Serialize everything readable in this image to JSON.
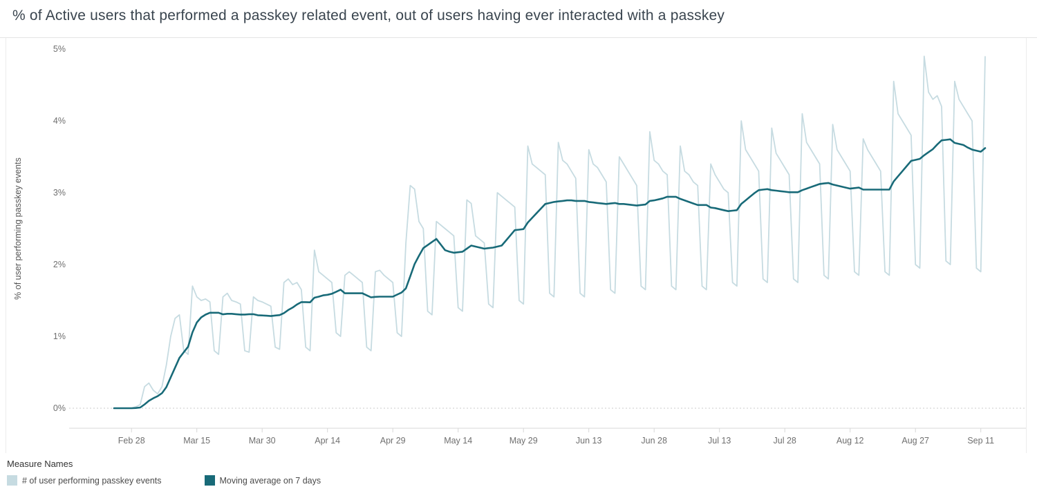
{
  "title": "% of Active users that performed a passkey related event, out of users having ever interacted with a passkey",
  "legend": {
    "title": "Measure Names",
    "items": [
      {
        "label": "# of user performing passkey events",
        "color": "#c6dbe1"
      },
      {
        "label": "Moving average on 7 days",
        "color": "#186a78"
      }
    ]
  },
  "chart_data": {
    "type": "line",
    "title": "% of Active users that performed a passkey related event, out of users having ever interacted with a passkey",
    "xlabel": "",
    "ylabel": "% of user performing passkey events",
    "ylim": [
      0,
      5
    ],
    "y_ticks": [
      "0%",
      "1%",
      "2%",
      "3%",
      "4%",
      "5%"
    ],
    "grid": "dotted zero line only",
    "legend_position": "bottom-left",
    "x_unit": "day",
    "x_start_label": "Feb 24",
    "x_tick_labels": [
      "Feb 28",
      "Mar 15",
      "Mar 30",
      "Apr 14",
      "Apr 29",
      "May 14",
      "May 29",
      "Jun 13",
      "Jun 28",
      "Jul 13",
      "Jul 28",
      "Aug 12",
      "Aug 27",
      "Sep 11"
    ],
    "x_tick_day_index": [
      4,
      19,
      34,
      49,
      64,
      79,
      94,
      109,
      124,
      139,
      154,
      169,
      184,
      199
    ],
    "series": [
      {
        "name": "# of user performing passkey events",
        "color": "#c6dbe1",
        "values": [
          0,
          0,
          0,
          0,
          0,
          0.02,
          0.05,
          0.3,
          0.35,
          0.25,
          0.2,
          0.3,
          0.6,
          1.0,
          1.25,
          1.3,
          0.8,
          0.75,
          1.7,
          1.55,
          1.5,
          1.52,
          1.48,
          0.8,
          0.75,
          1.55,
          1.6,
          1.5,
          1.48,
          1.45,
          0.8,
          0.78,
          1.55,
          1.5,
          1.48,
          1.45,
          1.42,
          0.85,
          0.82,
          1.75,
          1.8,
          1.72,
          1.75,
          1.65,
          0.85,
          0.8,
          2.2,
          1.9,
          1.85,
          1.8,
          1.75,
          1.05,
          1.0,
          1.85,
          1.9,
          1.85,
          1.8,
          1.75,
          0.85,
          0.8,
          1.9,
          1.92,
          1.85,
          1.8,
          1.75,
          1.05,
          1.0,
          2.3,
          3.1,
          3.05,
          2.6,
          2.5,
          1.35,
          1.3,
          2.6,
          2.55,
          2.5,
          2.45,
          2.4,
          1.4,
          1.35,
          2.9,
          2.85,
          2.4,
          2.35,
          2.3,
          1.45,
          1.4,
          3.0,
          2.95,
          2.9,
          2.85,
          2.8,
          1.5,
          1.45,
          3.65,
          3.4,
          3.35,
          3.3,
          3.25,
          1.6,
          1.55,
          3.7,
          3.45,
          3.4,
          3.3,
          3.2,
          1.6,
          1.55,
          3.6,
          3.4,
          3.35,
          3.25,
          3.15,
          1.65,
          1.6,
          3.5,
          3.4,
          3.3,
          3.2,
          3.1,
          1.7,
          1.65,
          3.85,
          3.45,
          3.4,
          3.3,
          3.25,
          1.7,
          1.65,
          3.65,
          3.3,
          3.25,
          3.15,
          3.1,
          1.7,
          1.65,
          3.4,
          3.25,
          3.15,
          3.05,
          3.0,
          1.75,
          1.7,
          4.0,
          3.6,
          3.5,
          3.4,
          3.3,
          1.8,
          1.75,
          3.9,
          3.55,
          3.45,
          3.35,
          3.25,
          1.8,
          1.75,
          4.1,
          3.7,
          3.6,
          3.5,
          3.4,
          1.85,
          1.8,
          3.95,
          3.6,
          3.5,
          3.4,
          3.3,
          1.9,
          1.85,
          3.75,
          3.6,
          3.5,
          3.4,
          3.3,
          1.9,
          1.85,
          4.55,
          4.1,
          4.0,
          3.9,
          3.8,
          2.0,
          1.95,
          4.9,
          4.4,
          4.3,
          4.35,
          4.2,
          2.05,
          2.0,
          4.55,
          4.3,
          4.2,
          4.1,
          4.0,
          1.95,
          1.9,
          4.9
        ]
      },
      {
        "name": "Moving average on 7 days",
        "color": "#186a78",
        "derived": "trailing 7-day moving average of first series",
        "window": 7
      }
    ]
  }
}
